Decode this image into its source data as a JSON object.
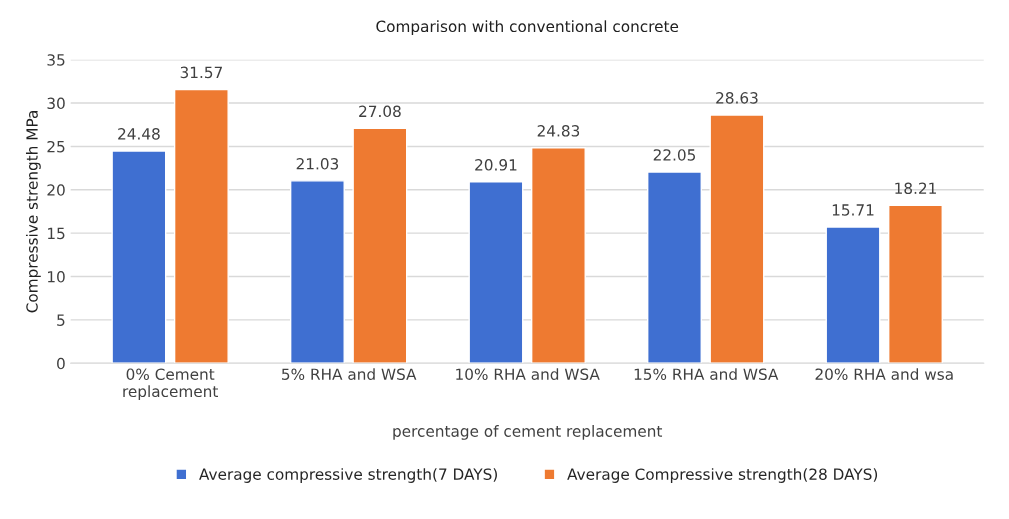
{
  "chart_data": {
    "type": "bar",
    "title": "Comparison with conventional concrete",
    "xlabel": "percentage of cement replacement",
    "ylabel": "Compressive strength MPa",
    "categories": [
      "0% Cement\nreplacement",
      "5% RHA and WSA",
      "10% RHA and WSA",
      "15% RHA and WSA",
      "20% RHA and wsa"
    ],
    "series": [
      {
        "name": "Average compressive strength(7 DAYS)",
        "color": "#3f6fd1",
        "values": [
          24.48,
          21.03,
          20.91,
          22.05,
          15.71
        ]
      },
      {
        "name": "Average Compressive strength(28 DAYS)",
        "color": "#ee7a31",
        "values": [
          31.57,
          27.08,
          24.83,
          28.63,
          18.21
        ]
      }
    ],
    "ylim": [
      0,
      35
    ],
    "yticks": [
      0,
      5,
      10,
      15,
      20,
      25,
      30,
      35
    ],
    "grid": "y",
    "legend": "bottom",
    "data_labels": true
  }
}
